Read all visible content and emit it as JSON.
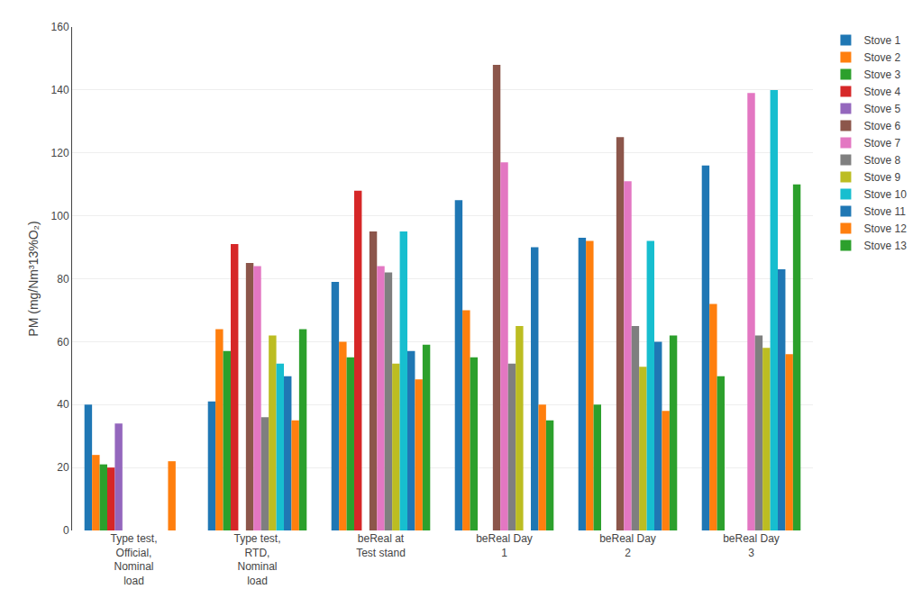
{
  "chart_data": {
    "type": "bar",
    "categories": [
      "Type test,\nOfficial,\nNominal\nload",
      "Type test,\nRTD,\nNominal\nload",
      "beReal at\nTest stand",
      "beReal Day\n1",
      "beReal Day\n2",
      "beReal Day\n3"
    ],
    "series": [
      {
        "name": "Stove 1",
        "values": [
          40,
          41,
          79,
          105,
          93,
          116
        ]
      },
      {
        "name": "Stove 2",
        "values": [
          24,
          64,
          60,
          70,
          92,
          72
        ]
      },
      {
        "name": "Stove 3",
        "values": [
          21,
          57,
          55,
          55,
          40,
          49
        ]
      },
      {
        "name": "Stove 4",
        "values": [
          20,
          91,
          108,
          null,
          null,
          null
        ]
      },
      {
        "name": "Stove 5",
        "values": [
          34,
          null,
          null,
          null,
          null,
          null
        ]
      },
      {
        "name": "Stove 6",
        "values": [
          null,
          85,
          95,
          148,
          125,
          null
        ]
      },
      {
        "name": "Stove 7",
        "values": [
          null,
          84,
          84,
          117,
          111,
          139
        ]
      },
      {
        "name": "Stove 8",
        "values": [
          null,
          36,
          82,
          53,
          65,
          62
        ]
      },
      {
        "name": "Stove 9",
        "values": [
          null,
          62,
          53,
          65,
          52,
          58
        ]
      },
      {
        "name": "Stove 10",
        "values": [
          null,
          53,
          95,
          null,
          92,
          140
        ]
      },
      {
        "name": "Stove 11",
        "values": [
          null,
          49,
          57,
          90,
          60,
          83
        ]
      },
      {
        "name": "Stove 12",
        "values": [
          22,
          35,
          48,
          40,
          38,
          56
        ]
      },
      {
        "name": "Stove 13",
        "values": [
          null,
          64,
          59,
          35,
          62,
          110
        ]
      }
    ],
    "ylabel": "PM (mg/Nm³13%O₂)",
    "ylim": [
      0,
      160
    ],
    "yticks": [
      0,
      20,
      40,
      60,
      80,
      100,
      120,
      140,
      160
    ],
    "grid": true,
    "legend": "right"
  }
}
